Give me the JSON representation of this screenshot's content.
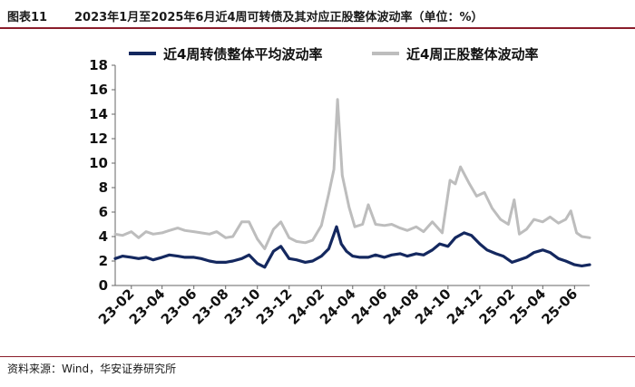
{
  "figure": {
    "label": "图表11",
    "title": "2023年1月至2025年6月近4周可转债及其对应正股整体波动率（单位：%）",
    "source": "资料来源：Wind，华安证券研究所"
  },
  "chart_data": {
    "type": "line",
    "ylim": [
      0,
      18
    ],
    "y_ticks": [
      "0",
      "2",
      "4",
      "6",
      "8",
      "10",
      "12",
      "14",
      "16",
      "18"
    ],
    "x_ticks": [
      "23-02",
      "23-04",
      "23-06",
      "23-08",
      "23-10",
      "23-12",
      "24-02",
      "24-04",
      "24-06",
      "24-08",
      "24-10",
      "24-12",
      "25-02",
      "25-04",
      "25-06"
    ],
    "x_domain": [
      "2023-01-01",
      "2025-06-30"
    ],
    "legend_position": "top",
    "grid": false,
    "series": [
      {
        "name": "近4周转债整体平均波动率",
        "color": "#14285f",
        "points": [
          [
            "2023-01-01",
            2.2
          ],
          [
            "2023-01-15",
            2.4
          ],
          [
            "2023-02-01",
            2.3
          ],
          [
            "2023-02-15",
            2.2
          ],
          [
            "2023-03-01",
            2.3
          ],
          [
            "2023-03-15",
            2.1
          ],
          [
            "2023-04-01",
            2.3
          ],
          [
            "2023-04-15",
            2.5
          ],
          [
            "2023-05-01",
            2.4
          ],
          [
            "2023-05-15",
            2.3
          ],
          [
            "2023-06-01",
            2.3
          ],
          [
            "2023-06-15",
            2.2
          ],
          [
            "2023-07-01",
            2.0
          ],
          [
            "2023-07-15",
            1.9
          ],
          [
            "2023-08-01",
            1.9
          ],
          [
            "2023-08-15",
            2.0
          ],
          [
            "2023-09-01",
            2.2
          ],
          [
            "2023-09-15",
            2.5
          ],
          [
            "2023-10-01",
            1.8
          ],
          [
            "2023-10-15",
            1.5
          ],
          [
            "2023-11-01",
            2.8
          ],
          [
            "2023-11-15",
            3.2
          ],
          [
            "2023-12-01",
            2.2
          ],
          [
            "2023-12-15",
            2.1
          ],
          [
            "2024-01-01",
            1.9
          ],
          [
            "2024-01-15",
            2.0
          ],
          [
            "2024-02-01",
            2.4
          ],
          [
            "2024-02-15",
            3.0
          ],
          [
            "2024-03-01",
            4.8
          ],
          [
            "2024-03-10",
            3.4
          ],
          [
            "2024-03-20",
            2.8
          ],
          [
            "2024-04-01",
            2.4
          ],
          [
            "2024-04-15",
            2.3
          ],
          [
            "2024-05-01",
            2.3
          ],
          [
            "2024-05-15",
            2.5
          ],
          [
            "2024-06-01",
            2.3
          ],
          [
            "2024-06-15",
            2.5
          ],
          [
            "2024-07-01",
            2.6
          ],
          [
            "2024-07-15",
            2.4
          ],
          [
            "2024-08-01",
            2.6
          ],
          [
            "2024-08-15",
            2.5
          ],
          [
            "2024-09-01",
            2.9
          ],
          [
            "2024-09-15",
            3.4
          ],
          [
            "2024-10-01",
            3.2
          ],
          [
            "2024-10-15",
            3.9
          ],
          [
            "2024-11-01",
            4.3
          ],
          [
            "2024-11-15",
            4.1
          ],
          [
            "2024-12-01",
            3.4
          ],
          [
            "2024-12-15",
            2.9
          ],
          [
            "2025-01-01",
            2.6
          ],
          [
            "2025-01-15",
            2.4
          ],
          [
            "2025-02-01",
            1.9
          ],
          [
            "2025-02-15",
            2.1
          ],
          [
            "2025-03-01",
            2.3
          ],
          [
            "2025-03-15",
            2.7
          ],
          [
            "2025-04-01",
            2.9
          ],
          [
            "2025-04-15",
            2.7
          ],
          [
            "2025-05-01",
            2.2
          ],
          [
            "2025-05-15",
            2.0
          ],
          [
            "2025-06-01",
            1.7
          ],
          [
            "2025-06-15",
            1.6
          ],
          [
            "2025-06-30",
            1.7
          ]
        ]
      },
      {
        "name": "近4周正股整体波动率",
        "color": "#bdbdbd",
        "points": [
          [
            "2023-01-01",
            4.2
          ],
          [
            "2023-01-15",
            4.1
          ],
          [
            "2023-02-01",
            4.4
          ],
          [
            "2023-02-15",
            3.9
          ],
          [
            "2023-03-01",
            4.4
          ],
          [
            "2023-03-15",
            4.2
          ],
          [
            "2023-04-01",
            4.3
          ],
          [
            "2023-04-15",
            4.5
          ],
          [
            "2023-05-01",
            4.7
          ],
          [
            "2023-05-15",
            4.5
          ],
          [
            "2023-06-01",
            4.4
          ],
          [
            "2023-06-15",
            4.3
          ],
          [
            "2023-07-01",
            4.2
          ],
          [
            "2023-07-15",
            4.4
          ],
          [
            "2023-08-01",
            3.9
          ],
          [
            "2023-08-15",
            4.0
          ],
          [
            "2023-09-01",
            5.2
          ],
          [
            "2023-09-15",
            5.2
          ],
          [
            "2023-10-01",
            3.8
          ],
          [
            "2023-10-15",
            3.0
          ],
          [
            "2023-11-01",
            4.6
          ],
          [
            "2023-11-15",
            5.2
          ],
          [
            "2023-12-01",
            3.9
          ],
          [
            "2023-12-15",
            3.6
          ],
          [
            "2024-01-01",
            3.5
          ],
          [
            "2024-01-15",
            3.7
          ],
          [
            "2024-02-01",
            4.9
          ],
          [
            "2024-02-15",
            7.5
          ],
          [
            "2024-02-25",
            9.5
          ],
          [
            "2024-03-03",
            15.2
          ],
          [
            "2024-03-12",
            9.0
          ],
          [
            "2024-03-25",
            6.4
          ],
          [
            "2024-04-05",
            4.8
          ],
          [
            "2024-04-20",
            5.0
          ],
          [
            "2024-05-01",
            6.6
          ],
          [
            "2024-05-15",
            5.0
          ],
          [
            "2024-06-01",
            4.9
          ],
          [
            "2024-06-15",
            5.0
          ],
          [
            "2024-07-01",
            4.7
          ],
          [
            "2024-07-15",
            4.5
          ],
          [
            "2024-08-01",
            4.8
          ],
          [
            "2024-08-15",
            4.4
          ],
          [
            "2024-09-01",
            5.2
          ],
          [
            "2024-09-20",
            4.3
          ],
          [
            "2024-10-05",
            8.6
          ],
          [
            "2024-10-15",
            8.3
          ],
          [
            "2024-10-25",
            9.7
          ],
          [
            "2024-11-10",
            8.4
          ],
          [
            "2024-11-25",
            7.3
          ],
          [
            "2024-12-10",
            7.6
          ],
          [
            "2024-12-25",
            6.3
          ],
          [
            "2025-01-10",
            5.4
          ],
          [
            "2025-01-25",
            5.0
          ],
          [
            "2025-02-05",
            7.0
          ],
          [
            "2025-02-15",
            4.2
          ],
          [
            "2025-03-01",
            4.6
          ],
          [
            "2025-03-15",
            5.4
          ],
          [
            "2025-04-01",
            5.2
          ],
          [
            "2025-04-15",
            5.6
          ],
          [
            "2025-05-01",
            5.1
          ],
          [
            "2025-05-15",
            5.4
          ],
          [
            "2025-05-25",
            6.1
          ],
          [
            "2025-06-05",
            4.3
          ],
          [
            "2025-06-15",
            4.0
          ],
          [
            "2025-06-30",
            3.9
          ]
        ]
      }
    ]
  }
}
